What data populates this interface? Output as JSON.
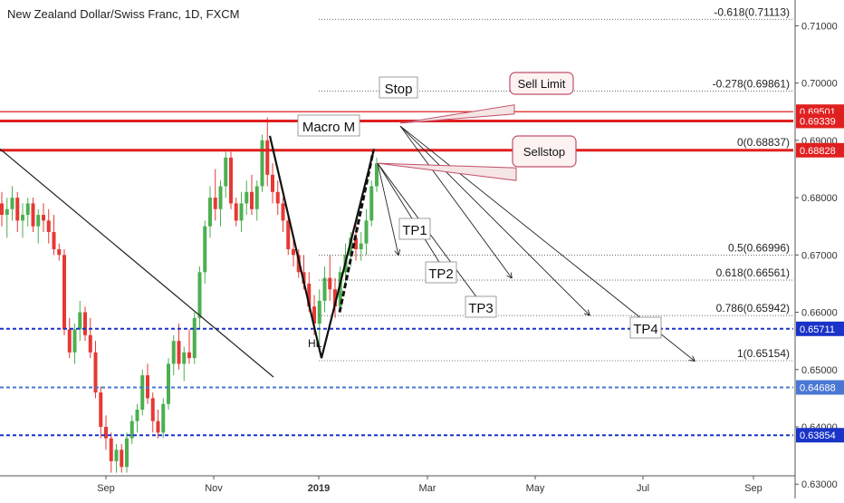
{
  "chart_data": {
    "type": "candlestick",
    "title": "New Zealand Dollar/Swiss Franc, 1D, FXCM",
    "y_axis_position": "right",
    "ylim": [
      0.6275,
      0.7145
    ],
    "y_ticks": [
      0.63,
      0.64,
      0.65,
      0.66,
      0.67,
      0.68,
      0.69,
      0.7,
      0.71
    ],
    "y_tick_labels": [
      "0.63000",
      "0.64000",
      "0.65000",
      "0.66000",
      "0.67000",
      "0.68000",
      "0.69000",
      "0.70000",
      "0.71000"
    ],
    "x_ticks": [
      "Sep",
      "Nov",
      "2019",
      "Mar",
      "May",
      "Jul",
      "Sep"
    ],
    "candles": [
      {
        "o": 0.679,
        "h": 0.681,
        "l": 0.675,
        "c": 0.677
      },
      {
        "o": 0.677,
        "h": 0.68,
        "l": 0.673,
        "c": 0.678
      },
      {
        "o": 0.678,
        "h": 0.682,
        "l": 0.676,
        "c": 0.68
      },
      {
        "o": 0.68,
        "h": 0.681,
        "l": 0.674,
        "c": 0.676
      },
      {
        "o": 0.676,
        "h": 0.679,
        "l": 0.673,
        "c": 0.677
      },
      {
        "o": 0.677,
        "h": 0.68,
        "l": 0.675,
        "c": 0.679
      },
      {
        "o": 0.679,
        "h": 0.68,
        "l": 0.674,
        "c": 0.675
      },
      {
        "o": 0.675,
        "h": 0.678,
        "l": 0.672,
        "c": 0.677
      },
      {
        "o": 0.677,
        "h": 0.679,
        "l": 0.674,
        "c": 0.676
      },
      {
        "o": 0.676,
        "h": 0.678,
        "l": 0.672,
        "c": 0.674
      },
      {
        "o": 0.674,
        "h": 0.677,
        "l": 0.67,
        "c": 0.671
      },
      {
        "o": 0.671,
        "h": 0.672,
        "l": 0.669,
        "c": 0.67
      },
      {
        "o": 0.67,
        "h": 0.671,
        "l": 0.656,
        "c": 0.657
      },
      {
        "o": 0.657,
        "h": 0.659,
        "l": 0.652,
        "c": 0.653
      },
      {
        "o": 0.653,
        "h": 0.658,
        "l": 0.651,
        "c": 0.657
      },
      {
        "o": 0.657,
        "h": 0.662,
        "l": 0.655,
        "c": 0.66
      },
      {
        "o": 0.66,
        "h": 0.661,
        "l": 0.655,
        "c": 0.656
      },
      {
        "o": 0.656,
        "h": 0.659,
        "l": 0.652,
        "c": 0.653
      },
      {
        "o": 0.653,
        "h": 0.655,
        "l": 0.645,
        "c": 0.646
      },
      {
        "o": 0.646,
        "h": 0.647,
        "l": 0.638,
        "c": 0.64
      },
      {
        "o": 0.64,
        "h": 0.642,
        "l": 0.636,
        "c": 0.638
      },
      {
        "o": 0.638,
        "h": 0.639,
        "l": 0.632,
        "c": 0.634
      },
      {
        "o": 0.634,
        "h": 0.637,
        "l": 0.632,
        "c": 0.636
      },
      {
        "o": 0.636,
        "h": 0.637,
        "l": 0.632,
        "c": 0.633
      },
      {
        "o": 0.633,
        "h": 0.639,
        "l": 0.632,
        "c": 0.638
      },
      {
        "o": 0.638,
        "h": 0.642,
        "l": 0.637,
        "c": 0.641
      },
      {
        "o": 0.641,
        "h": 0.644,
        "l": 0.639,
        "c": 0.643
      },
      {
        "o": 0.643,
        "h": 0.65,
        "l": 0.642,
        "c": 0.649
      },
      {
        "o": 0.649,
        "h": 0.651,
        "l": 0.644,
        "c": 0.645
      },
      {
        "o": 0.645,
        "h": 0.646,
        "l": 0.639,
        "c": 0.641
      },
      {
        "o": 0.641,
        "h": 0.643,
        "l": 0.638,
        "c": 0.639
      },
      {
        "o": 0.639,
        "h": 0.645,
        "l": 0.638,
        "c": 0.644
      },
      {
        "o": 0.644,
        "h": 0.652,
        "l": 0.643,
        "c": 0.651
      },
      {
        "o": 0.651,
        "h": 0.656,
        "l": 0.649,
        "c": 0.655
      },
      {
        "o": 0.655,
        "h": 0.658,
        "l": 0.65,
        "c": 0.651
      },
      {
        "o": 0.651,
        "h": 0.654,
        "l": 0.648,
        "c": 0.653
      },
      {
        "o": 0.653,
        "h": 0.657,
        "l": 0.651,
        "c": 0.652
      },
      {
        "o": 0.652,
        "h": 0.66,
        "l": 0.651,
        "c": 0.659
      },
      {
        "o": 0.659,
        "h": 0.668,
        "l": 0.657,
        "c": 0.667
      },
      {
        "o": 0.667,
        "h": 0.676,
        "l": 0.665,
        "c": 0.675
      },
      {
        "o": 0.675,
        "h": 0.682,
        "l": 0.673,
        "c": 0.68
      },
      {
        "o": 0.68,
        "h": 0.685,
        "l": 0.676,
        "c": 0.678
      },
      {
        "o": 0.678,
        "h": 0.683,
        "l": 0.675,
        "c": 0.682
      },
      {
        "o": 0.682,
        "h": 0.688,
        "l": 0.68,
        "c": 0.687
      },
      {
        "o": 0.687,
        "h": 0.688,
        "l": 0.678,
        "c": 0.679
      },
      {
        "o": 0.679,
        "h": 0.68,
        "l": 0.675,
        "c": 0.676
      },
      {
        "o": 0.676,
        "h": 0.681,
        "l": 0.674,
        "c": 0.679
      },
      {
        "o": 0.679,
        "h": 0.683,
        "l": 0.677,
        "c": 0.681
      },
      {
        "o": 0.681,
        "h": 0.684,
        "l": 0.677,
        "c": 0.678
      },
      {
        "o": 0.678,
        "h": 0.683,
        "l": 0.676,
        "c": 0.682
      },
      {
        "o": 0.682,
        "h": 0.691,
        "l": 0.681,
        "c": 0.69
      },
      {
        "o": 0.69,
        "h": 0.694,
        "l": 0.682,
        "c": 0.684
      },
      {
        "o": 0.684,
        "h": 0.686,
        "l": 0.679,
        "c": 0.681
      },
      {
        "o": 0.681,
        "h": 0.683,
        "l": 0.677,
        "c": 0.679
      },
      {
        "o": 0.679,
        "h": 0.68,
        "l": 0.674,
        "c": 0.676
      },
      {
        "o": 0.676,
        "h": 0.677,
        "l": 0.67,
        "c": 0.671
      },
      {
        "o": 0.671,
        "h": 0.673,
        "l": 0.668,
        "c": 0.67
      },
      {
        "o": 0.67,
        "h": 0.671,
        "l": 0.666,
        "c": 0.667
      },
      {
        "o": 0.667,
        "h": 0.67,
        "l": 0.664,
        "c": 0.665
      },
      {
        "o": 0.665,
        "h": 0.667,
        "l": 0.66,
        "c": 0.661
      },
      {
        "o": 0.661,
        "h": 0.663,
        "l": 0.656,
        "c": 0.658
      },
      {
        "o": 0.658,
        "h": 0.664,
        "l": 0.654,
        "c": 0.662
      },
      {
        "o": 0.662,
        "h": 0.668,
        "l": 0.66,
        "c": 0.666
      },
      {
        "o": 0.666,
        "h": 0.67,
        "l": 0.662,
        "c": 0.664
      },
      {
        "o": 0.664,
        "h": 0.666,
        "l": 0.659,
        "c": 0.661
      },
      {
        "o": 0.661,
        "h": 0.668,
        "l": 0.66,
        "c": 0.667
      },
      {
        "o": 0.667,
        "h": 0.672,
        "l": 0.665,
        "c": 0.67
      },
      {
        "o": 0.67,
        "h": 0.674,
        "l": 0.668,
        "c": 0.673
      },
      {
        "o": 0.673,
        "h": 0.676,
        "l": 0.669,
        "c": 0.671
      },
      {
        "o": 0.671,
        "h": 0.674,
        "l": 0.669,
        "c": 0.672
      },
      {
        "o": 0.672,
        "h": 0.678,
        "l": 0.67,
        "c": 0.676
      },
      {
        "o": 0.676,
        "h": 0.683,
        "l": 0.675,
        "c": 0.682
      },
      {
        "o": 0.682,
        "h": 0.687,
        "l": 0.681,
        "c": 0.686
      }
    ],
    "fib_levels": [
      {
        "label": "-0.618(0.71113)",
        "value": 0.71113
      },
      {
        "label": "-0.278(0.69861)",
        "value": 0.69861
      },
      {
        "label": "0(0.68837)",
        "value": 0.68837
      },
      {
        "label": "0.5(0.66996)",
        "value": 0.66996
      },
      {
        "label": "0.618(0.66561)",
        "value": 0.66561
      },
      {
        "label": "0.786(0.65942)",
        "value": 0.65942
      },
      {
        "label": "1(0.65154)",
        "value": 0.65154
      }
    ],
    "horizontal_lines": [
      {
        "value": 0.69501,
        "label": "0.69501",
        "color": "#e02020",
        "style": "solid"
      },
      {
        "value": 0.69339,
        "label": "0.69339",
        "color": "#e02020",
        "style": "solid"
      },
      {
        "value": 0.68828,
        "label": "0.68828",
        "color": "#e02020",
        "style": "solid"
      },
      {
        "value": 0.65711,
        "label": "0.65711",
        "color": "#1a33c8",
        "style": "dashed"
      },
      {
        "value": 0.64688,
        "label": "0.64688",
        "color": "#4a77d4",
        "style": "dashed"
      },
      {
        "value": 0.63854,
        "label": "0.63854",
        "color": "#1a33c8",
        "style": "dashed"
      }
    ],
    "annotations": {
      "macro_m": "Macro M",
      "stop": "Stop",
      "hl": "HL",
      "sell_limit": "Sell Limit",
      "sellstop": "Sellstop",
      "targets": [
        "TP1",
        "TP2",
        "TP3",
        "TP4"
      ]
    },
    "colors": {
      "up": "#26a69a",
      "down": "#ef5350",
      "bull_candle": "#4caf50",
      "bear_candle": "#e53935"
    }
  }
}
